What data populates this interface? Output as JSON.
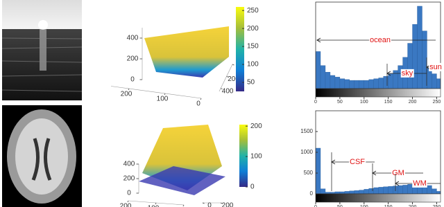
{
  "chart_data": [
    {
      "type": "surface3d",
      "zlim": [
        0,
        500
      ],
      "zticks": [
        0,
        200,
        400
      ],
      "xlim": [
        0,
        250
      ],
      "xticks": [
        0,
        100,
        200
      ],
      "ylim": [
        0,
        450
      ],
      "yticks": [
        0,
        200,
        400
      ],
      "clim": [
        25,
        260
      ],
      "cticks": [
        50,
        100,
        150,
        200,
        250
      ]
    },
    {
      "type": "histogram",
      "bins": [
        0,
        10,
        20,
        30,
        40,
        50,
        60,
        70,
        80,
        90,
        100,
        110,
        120,
        130,
        140,
        150,
        160,
        170,
        180,
        190,
        200,
        210,
        220,
        230,
        240,
        250,
        260
      ],
      "values": [
        45,
        28,
        20,
        16,
        14,
        12,
        11,
        10,
        10,
        10,
        10,
        11,
        12,
        13,
        15,
        18,
        22,
        28,
        38,
        55,
        78,
        100,
        70,
        25,
        18,
        12
      ],
      "color": "#3a78c2",
      "xlim": [
        0,
        258
      ],
      "xticks": [
        0,
        50,
        100,
        150,
        200,
        250
      ],
      "ylim": [
        0,
        105
      ],
      "annotations": [
        "ocean",
        "sky",
        "sun"
      ]
    },
    {
      "type": "surface3d",
      "zlim": [
        0,
        400
      ],
      "zticks": [
        0,
        200,
        400
      ],
      "xlim": [
        0,
        200
      ],
      "xticks": [
        0,
        100,
        200
      ],
      "ylim": [
        0,
        200
      ],
      "yticks": [
        0,
        200
      ],
      "clim": [
        0,
        205
      ],
      "cticks": [
        0,
        100,
        200
      ]
    },
    {
      "type": "histogram",
      "bins": [
        0,
        10,
        20,
        30,
        40,
        50,
        60,
        70,
        80,
        90,
        100,
        110,
        120,
        130,
        140,
        150,
        160,
        170,
        180,
        190,
        200,
        210,
        220,
        230,
        240,
        250,
        260
      ],
      "values": [
        1100,
        120,
        40,
        40,
        50,
        50,
        60,
        70,
        80,
        90,
        110,
        130,
        150,
        160,
        170,
        180,
        190,
        200,
        210,
        230,
        250,
        260,
        250,
        200,
        120,
        60
      ],
      "color": "#3a78c2",
      "xlim": [
        0,
        258
      ],
      "xticks": [
        0,
        50,
        100,
        150,
        200,
        250
      ],
      "ylim": [
        0,
        2000
      ],
      "yticks": [
        0,
        500,
        1000,
        1500
      ],
      "annotations": [
        "CSF",
        "GM",
        "WM"
      ]
    }
  ]
}
